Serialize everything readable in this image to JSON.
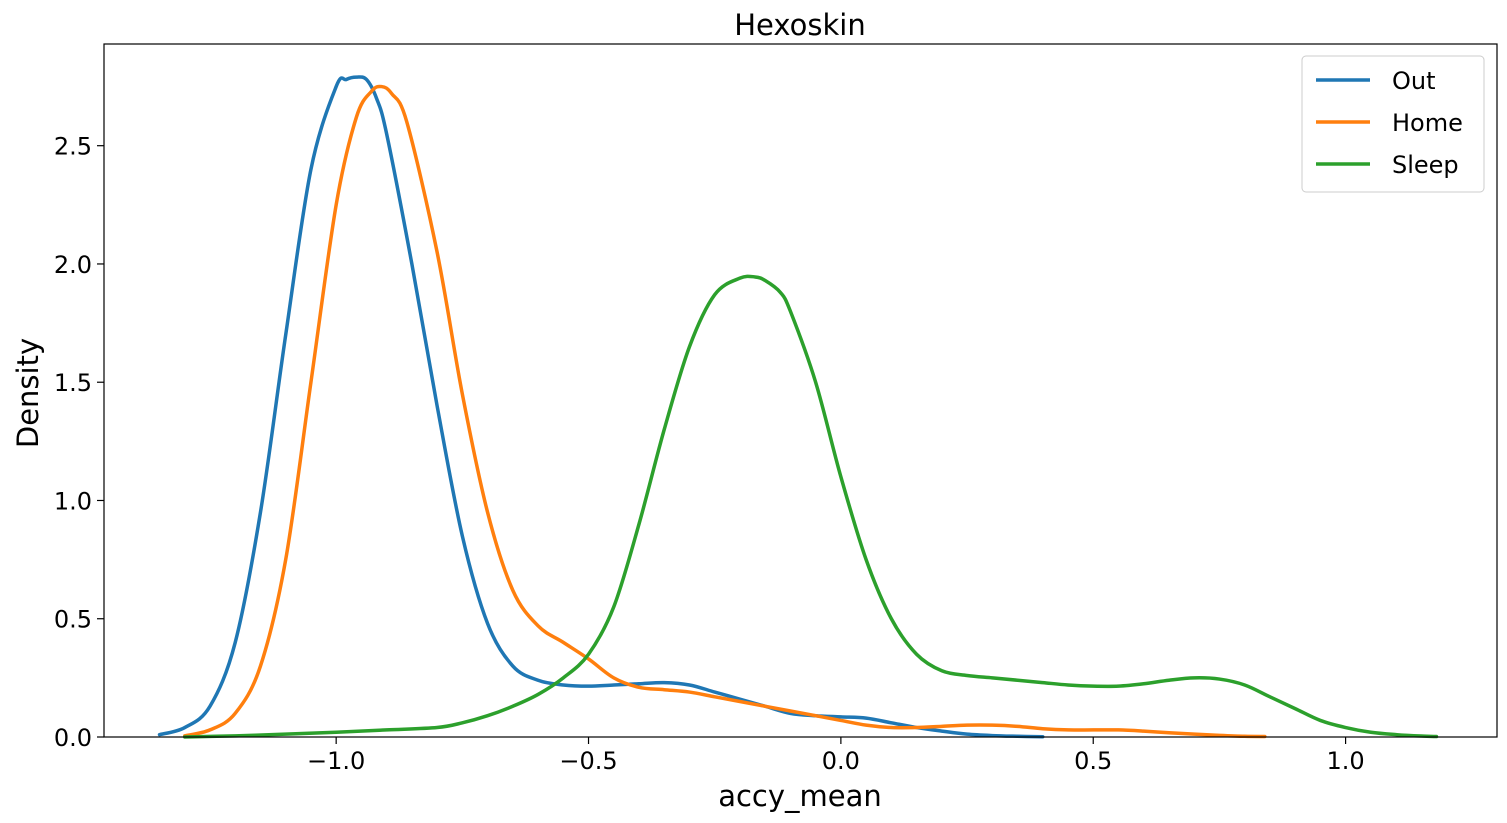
{
  "chart_data": {
    "type": "line",
    "title": "Hexoskin",
    "xlabel": "accy_mean",
    "ylabel": "Density",
    "xlim": [
      -1.46,
      1.3
    ],
    "ylim": [
      0.0,
      2.93
    ],
    "xticks": [
      -1.0,
      -0.5,
      0.0,
      0.5,
      1.0
    ],
    "xtick_labels": [
      "−1.0",
      "−0.5",
      "0.0",
      "0.5",
      "1.0"
    ],
    "yticks": [
      0.0,
      0.5,
      1.0,
      1.5,
      2.0,
      2.5
    ],
    "ytick_labels": [
      "0.0",
      "0.5",
      "1.0",
      "1.5",
      "2.0",
      "2.5"
    ],
    "grid": false,
    "legend": "top-right",
    "series": [
      {
        "name": "Out",
        "color": "#1f77b4",
        "x": [
          -1.35,
          -1.3,
          -1.25,
          -1.2,
          -1.15,
          -1.1,
          -1.05,
          -1.0,
          -0.98,
          -0.96,
          -0.94,
          -0.92,
          -0.9,
          -0.85,
          -0.8,
          -0.75,
          -0.7,
          -0.65,
          -0.6,
          -0.55,
          -0.5,
          -0.45,
          -0.4,
          -0.35,
          -0.3,
          -0.25,
          -0.2,
          -0.15,
          -0.1,
          -0.05,
          0.0,
          0.05,
          0.1,
          0.15,
          0.2,
          0.25,
          0.3,
          0.35,
          0.4
        ],
        "y": [
          0.01,
          0.04,
          0.13,
          0.4,
          0.95,
          1.7,
          2.4,
          2.75,
          2.78,
          2.79,
          2.78,
          2.7,
          2.55,
          2.0,
          1.4,
          0.85,
          0.48,
          0.3,
          0.24,
          0.22,
          0.215,
          0.22,
          0.225,
          0.23,
          0.22,
          0.19,
          0.16,
          0.13,
          0.1,
          0.09,
          0.085,
          0.08,
          0.06,
          0.04,
          0.025,
          0.012,
          0.006,
          0.003,
          0.001
        ]
      },
      {
        "name": "Home",
        "color": "#ff7f0e",
        "x": [
          -1.3,
          -1.25,
          -1.2,
          -1.15,
          -1.1,
          -1.05,
          -1.0,
          -0.96,
          -0.93,
          -0.91,
          -0.89,
          -0.86,
          -0.8,
          -0.75,
          -0.7,
          -0.65,
          -0.6,
          -0.55,
          -0.5,
          -0.45,
          -0.4,
          -0.35,
          -0.3,
          -0.25,
          -0.2,
          -0.15,
          -0.1,
          -0.05,
          0.0,
          0.05,
          0.1,
          0.15,
          0.2,
          0.25,
          0.3,
          0.35,
          0.4,
          0.45,
          0.5,
          0.55,
          0.6,
          0.65,
          0.7,
          0.75,
          0.8,
          0.84
        ],
        "y": [
          0.005,
          0.03,
          0.1,
          0.3,
          0.75,
          1.5,
          2.25,
          2.62,
          2.73,
          2.75,
          2.72,
          2.6,
          2.05,
          1.45,
          0.95,
          0.62,
          0.47,
          0.4,
          0.33,
          0.25,
          0.21,
          0.2,
          0.19,
          0.17,
          0.15,
          0.13,
          0.11,
          0.09,
          0.07,
          0.05,
          0.04,
          0.04,
          0.045,
          0.05,
          0.05,
          0.045,
          0.035,
          0.03,
          0.03,
          0.03,
          0.025,
          0.018,
          0.012,
          0.007,
          0.003,
          0.002
        ]
      },
      {
        "name": "Sleep",
        "color": "#2ca02c",
        "x": [
          -1.3,
          -1.2,
          -1.1,
          -1.0,
          -0.9,
          -0.8,
          -0.75,
          -0.7,
          -0.65,
          -0.6,
          -0.55,
          -0.5,
          -0.45,
          -0.4,
          -0.35,
          -0.3,
          -0.25,
          -0.2,
          -0.17,
          -0.15,
          -0.12,
          -0.1,
          -0.05,
          0.0,
          0.05,
          0.1,
          0.15,
          0.2,
          0.25,
          0.3,
          0.35,
          0.4,
          0.45,
          0.5,
          0.55,
          0.6,
          0.65,
          0.7,
          0.75,
          0.8,
          0.85,
          0.9,
          0.95,
          1.0,
          1.05,
          1.1,
          1.15,
          1.18
        ],
        "y": [
          0.0,
          0.005,
          0.012,
          0.02,
          0.03,
          0.04,
          0.06,
          0.09,
          0.13,
          0.18,
          0.25,
          0.35,
          0.55,
          0.9,
          1.3,
          1.65,
          1.87,
          1.94,
          1.945,
          1.93,
          1.88,
          1.8,
          1.5,
          1.1,
          0.75,
          0.5,
          0.35,
          0.28,
          0.26,
          0.25,
          0.24,
          0.23,
          0.22,
          0.215,
          0.215,
          0.225,
          0.24,
          0.25,
          0.245,
          0.22,
          0.17,
          0.12,
          0.07,
          0.04,
          0.02,
          0.01,
          0.004,
          0.002
        ]
      }
    ]
  }
}
